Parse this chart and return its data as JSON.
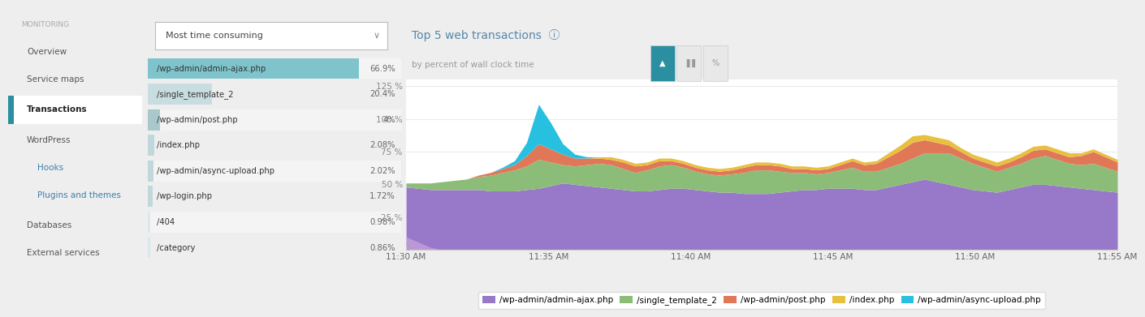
{
  "menu_items": [
    {
      "text": "MONITORING",
      "level": 0,
      "color": "#aaaaaa",
      "bold": false,
      "active": false
    },
    {
      "text": "Overview",
      "level": 1,
      "color": "#555555",
      "bold": false,
      "active": false
    },
    {
      "text": "Service maps",
      "level": 1,
      "color": "#555555",
      "bold": false,
      "active": false
    },
    {
      "text": "Transactions",
      "level": 1,
      "color": "#222222",
      "bold": true,
      "active": true
    },
    {
      "text": "WordPress",
      "level": 1,
      "color": "#555555",
      "bold": false,
      "active": false
    },
    {
      "text": "Hooks",
      "level": 2,
      "color": "#3a7fa8",
      "bold": false,
      "active": false
    },
    {
      "text": "Plugins and themes",
      "level": 2,
      "color": "#3a7fa8",
      "bold": false,
      "active": false
    },
    {
      "text": "Databases",
      "level": 1,
      "color": "#555555",
      "bold": false,
      "active": false
    },
    {
      "text": "External services",
      "level": 1,
      "color": "#555555",
      "bold": false,
      "active": false
    }
  ],
  "active_indicator_color": "#2a8fa0",
  "dropdown_text": "Most time consuming",
  "bar_items": [
    {
      "label": "/wp-admin/admin-ajax.php",
      "value": "66.9%",
      "bar_color": "#7fc4cc",
      "bar_width": 1.0
    },
    {
      "label": "/single_template_2",
      "value": "20.4%",
      "bar_color": "#c8dde0",
      "bar_width": 0.305
    },
    {
      "label": "/wp-admin/post.php",
      "value": "4%",
      "bar_color": "#a8c8cc",
      "bar_width": 0.06
    },
    {
      "label": "/index.php",
      "value": "2.08%",
      "bar_color": "#c0d8dc",
      "bar_width": 0.031
    },
    {
      "label": "/wp-admin/async-upload.php",
      "value": "2.02%",
      "bar_color": "#c0d8dc",
      "bar_width": 0.03
    },
    {
      "label": "/wp-login.php",
      "value": "1.72%",
      "bar_color": "#c0d8dc",
      "bar_width": 0.026
    },
    {
      "label": "/404",
      "value": "0.98%",
      "bar_color": "#d8e8ec",
      "bar_width": 0.015
    },
    {
      "label": "/category",
      "value": "0.86%",
      "bar_color": "#d8e8ec",
      "bar_width": 0.013
    }
  ],
  "chart_title": "Top 5 web transactions",
  "chart_subtitle": "by percent of wall clock time",
  "x_labels": [
    "11:30 AM",
    "11:35 AM",
    "11:40 AM",
    "11:45 AM",
    "11:50 AM",
    "11:55 AM"
  ],
  "legend_items": [
    {
      "label": "/wp-admin/admin-ajax.php",
      "color": "#9878c8"
    },
    {
      "label": "/single_template_2",
      "color": "#8cbd78"
    },
    {
      "label": "/wp-admin/post.php",
      "color": "#e07858"
    },
    {
      "label": "/index.php",
      "color": "#e8c040"
    },
    {
      "label": "/wp-admin/async-upload.php",
      "color": "#28c0e0"
    }
  ],
  "series_colors": {
    "admin_ajax": "#9878c8",
    "single_template": "#8cbd78",
    "post_php": "#e07858",
    "index_php": "#e8c040",
    "async_upload": "#28c0e0"
  },
  "n_points": 60,
  "left_bg": "#e8e8e8",
  "mid_bg": "#ffffff",
  "chart_bg": "#ffffff",
  "fig_bg": "#eeeeee"
}
